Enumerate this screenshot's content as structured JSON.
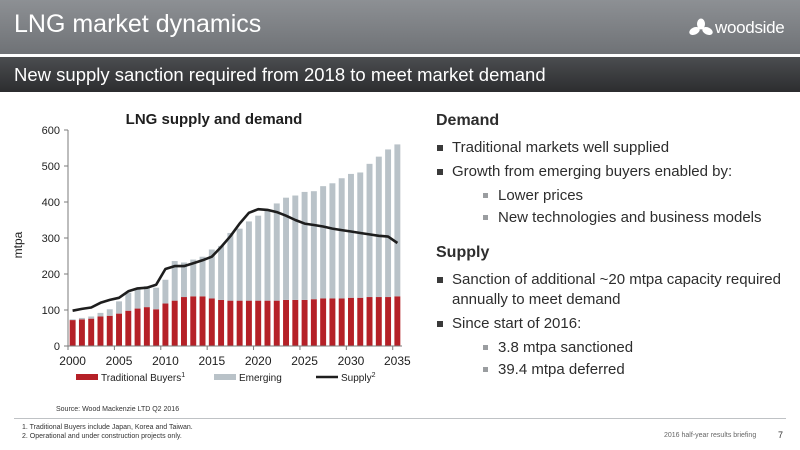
{
  "header": {
    "title": "LNG market dynamics",
    "logo_text": "woodside",
    "logo_icon": "woodside-flower-icon"
  },
  "subheader": {
    "title": "New supply sanction required from 2018 to meet market demand"
  },
  "chart_data": {
    "type": "bar",
    "title": "LNG supply and demand",
    "ylabel": "mtpa",
    "xlabel": "",
    "ylim": [
      0,
      600
    ],
    "y_ticks": [
      0,
      100,
      200,
      300,
      400,
      500,
      600
    ],
    "x_tick_labels": [
      "2000",
      "2005",
      "2010",
      "2015",
      "2020",
      "2025",
      "2030",
      "2035"
    ],
    "stacked": true,
    "categories": [
      2000,
      2001,
      2002,
      2003,
      2004,
      2005,
      2006,
      2007,
      2008,
      2009,
      2010,
      2011,
      2012,
      2013,
      2014,
      2015,
      2016,
      2017,
      2018,
      2019,
      2020,
      2021,
      2022,
      2023,
      2024,
      2025,
      2026,
      2027,
      2028,
      2029,
      2030,
      2031,
      2032,
      2033,
      2034,
      2035
    ],
    "series": [
      {
        "name": "Traditional Buyers",
        "name_superscript": "1",
        "kind": "bar",
        "color": "#b52027",
        "values": [
          72,
          74,
          76,
          82,
          84,
          90,
          98,
          104,
          108,
          102,
          118,
          126,
          136,
          138,
          138,
          132,
          128,
          126,
          126,
          126,
          126,
          126,
          126,
          128,
          128,
          128,
          130,
          132,
          132,
          132,
          134,
          134,
          136,
          136,
          136,
          138
        ]
      },
      {
        "name": "Emerging",
        "kind": "bar",
        "color": "#b9c2c8",
        "values": [
          2,
          4,
          6,
          10,
          18,
          34,
          50,
          56,
          58,
          60,
          66,
          110,
          96,
          102,
          110,
          136,
          150,
          188,
          200,
          220,
          236,
          250,
          270,
          284,
          290,
          300,
          300,
          312,
          320,
          334,
          344,
          348,
          370,
          390,
          410,
          422
        ]
      },
      {
        "name": "Supply",
        "name_superscript": "2",
        "kind": "line",
        "color": "#1e1e1e",
        "values": [
          98,
          103,
          107,
          120,
          128,
          134,
          152,
          160,
          162,
          170,
          214,
          222,
          222,
          230,
          238,
          248,
          275,
          305,
          340,
          370,
          380,
          378,
          372,
          362,
          350,
          340,
          336,
          332,
          326,
          322,
          318,
          314,
          310,
          306,
          304,
          286
        ]
      }
    ],
    "legend_position": "bottom",
    "grid": false
  },
  "right": {
    "demand_title": "Demand",
    "demand_b1": "Traditional markets well supplied",
    "demand_b2": "Growth from emerging buyers enabled by:",
    "demand_s1": "Lower prices",
    "demand_s2": "New technologies and business models",
    "supply_title": "Supply",
    "supply_b1": "Sanction of additional ~20 mtpa capacity required annually to meet demand",
    "supply_b2": "Since start of 2016:",
    "supply_s1": "3.8 mtpa sanctioned",
    "supply_s2": "39.4 mtpa deferred"
  },
  "footer": {
    "source": "Source: Wood Mackenzie LTD Q2 2016",
    "note1": "1. Traditional Buyers include Japan, Korea and Taiwan.",
    "note2": "2. Operational and under construction projects only.",
    "doc_title": "2016 half-year results briefing",
    "page_number": "7"
  }
}
